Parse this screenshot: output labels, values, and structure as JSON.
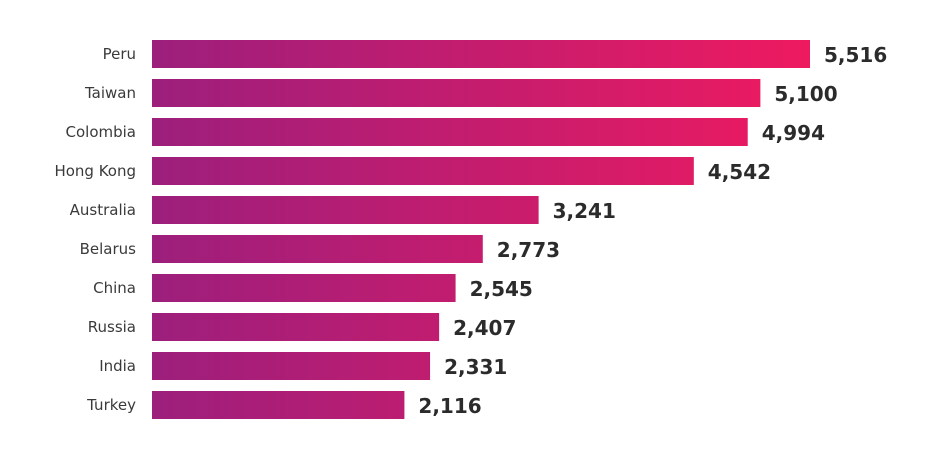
{
  "chart_data": {
    "type": "bar",
    "orientation": "horizontal",
    "title": "",
    "xlabel": "",
    "ylabel": "",
    "categories": [
      "Peru",
      "Taiwan",
      "Colombia",
      "Hong Kong",
      "Australia",
      "Belarus",
      "China",
      "Russia",
      "India",
      "Turkey"
    ],
    "values": [
      5516,
      5100,
      4994,
      4542,
      3241,
      2773,
      2545,
      2407,
      2331,
      2116
    ],
    "value_labels": [
      "5,516",
      "5,100",
      "4,994",
      "4,542",
      "3,241",
      "2,773",
      "2,545",
      "2,407",
      "2,331",
      "2,116"
    ],
    "xlim": [
      0,
      5516
    ],
    "grid": false,
    "legend": "none"
  },
  "colors": {
    "bar_gradient_start": "#9c1f7c",
    "bar_gradient_end": "#ee1a60",
    "category_text": "#3a3a3a",
    "value_text": "#2b2b2b"
  }
}
